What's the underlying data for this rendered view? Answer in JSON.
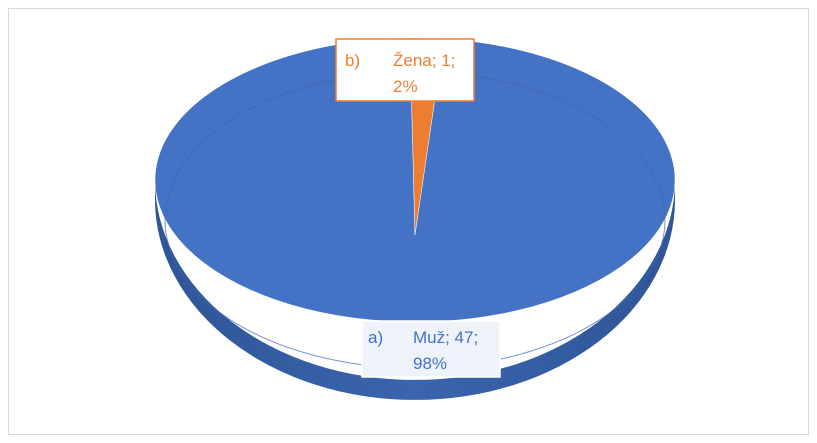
{
  "chart_data": {
    "type": "pie",
    "title": "",
    "slices": [
      {
        "code": "a)",
        "name": "Muž",
        "value": 47,
        "percent": "98%",
        "color": "#4472c4",
        "label_line1": "Muž; 47;",
        "label_line2": "98%"
      },
      {
        "code": "b)",
        "name": "Žena",
        "value": 1,
        "percent": "2%",
        "color": "#ed7d31",
        "label_line1": "Žena; 1;",
        "label_line2": "2%"
      }
    ],
    "legend": "none",
    "style": "3d-pie"
  }
}
